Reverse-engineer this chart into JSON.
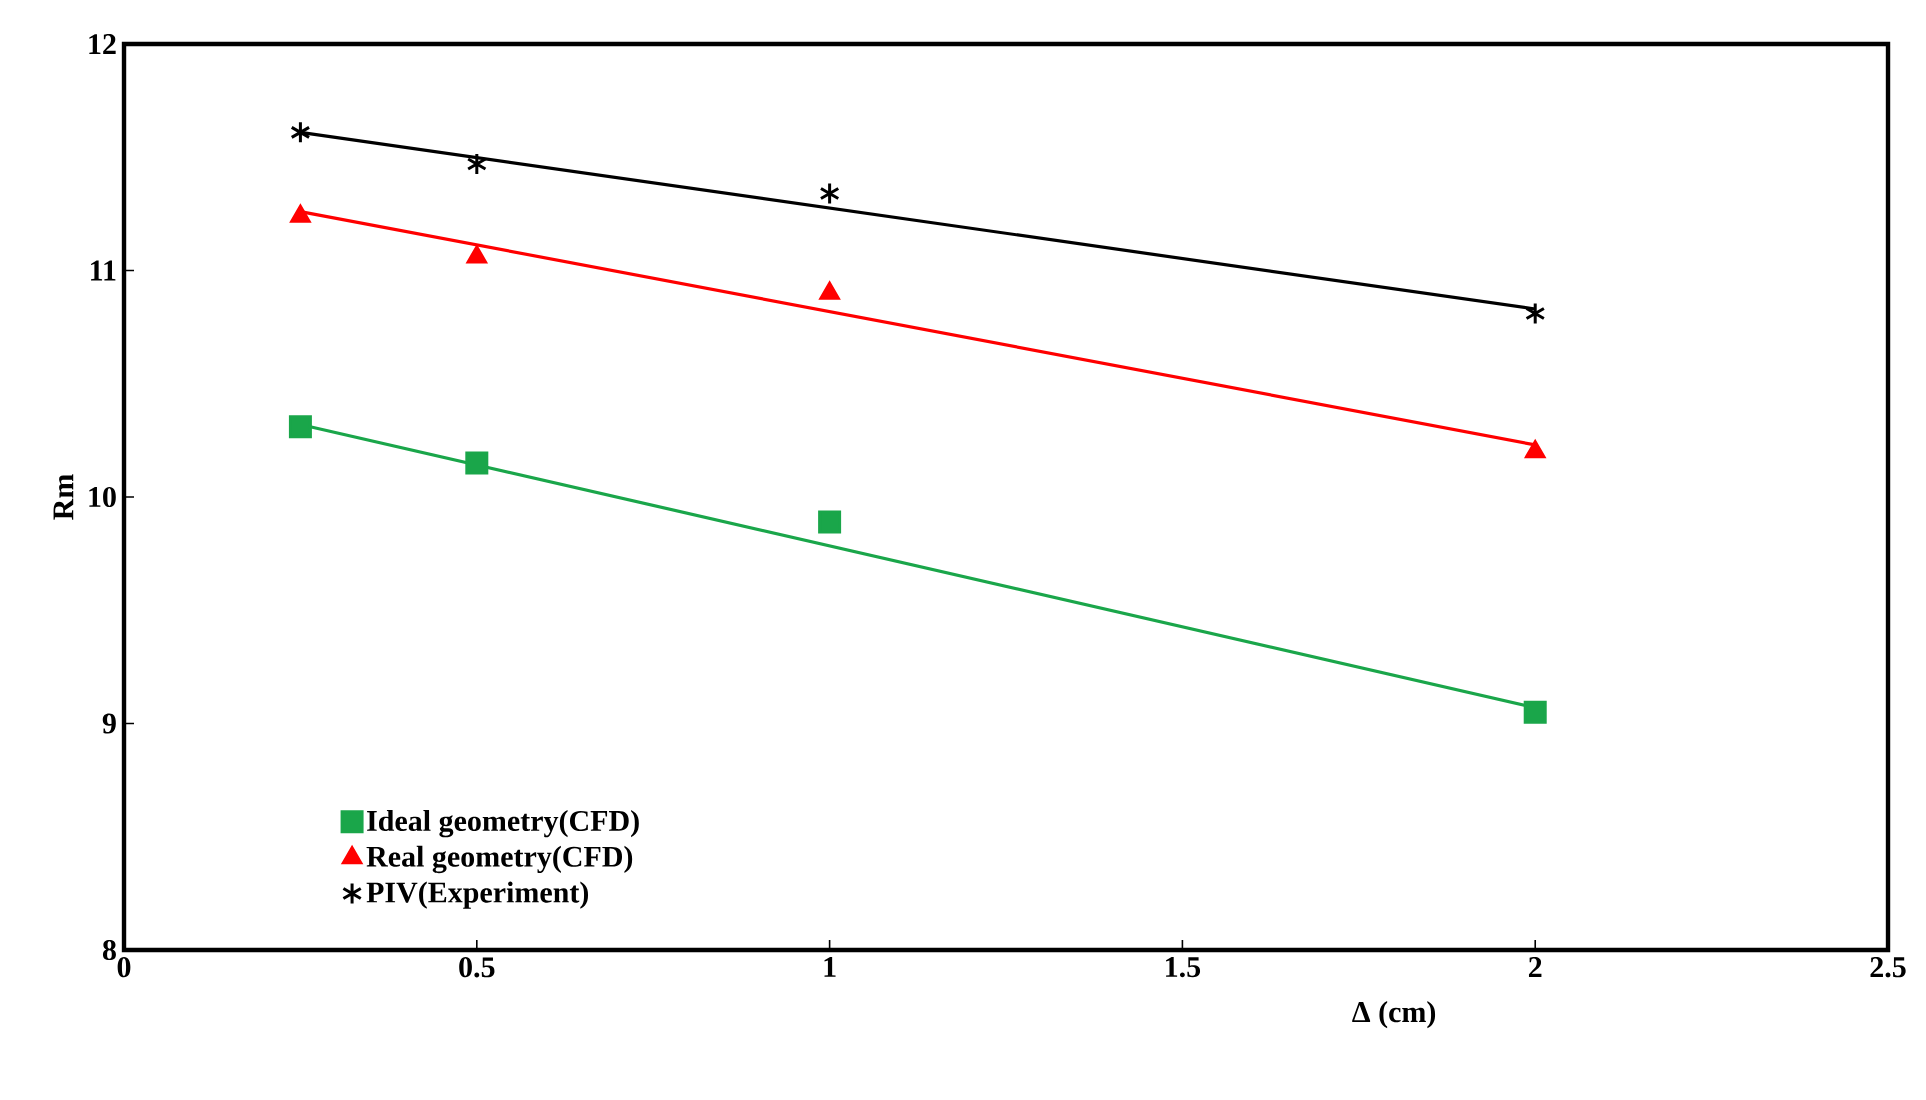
{
  "chart_data": {
    "type": "scatter",
    "xlabel": "Δ (cm)",
    "ylabel": "Rm",
    "xlim": [
      0,
      2.5
    ],
    "xticks": [
      0,
      0.5,
      1,
      1.5,
      2,
      2.5
    ],
    "ylim": [
      8,
      12
    ],
    "yticks": [
      8,
      9,
      10,
      11,
      12
    ],
    "legend": "bottom left",
    "series": [
      {
        "name": "Ideal geometry(CFD)",
        "color": "#1aa64a",
        "marker": "square",
        "x": [
          0.25,
          0.5,
          1,
          2
        ],
        "values": [
          10.31,
          10.15,
          9.89,
          9.05
        ]
      },
      {
        "name": "Real geometry(CFD)",
        "color": "#ff0000",
        "marker": "triangle",
        "x": [
          0.25,
          0.5,
          1,
          2
        ],
        "values": [
          11.24,
          11.06,
          10.9,
          10.2
        ]
      },
      {
        "name": "PIV(Experiment)",
        "color": "#000000",
        "marker": "cross",
        "x": [
          0.25,
          0.5,
          1,
          2
        ],
        "values": [
          11.61,
          11.47,
          11.34,
          10.81
        ]
      },
      {
        "type": "line",
        "color": "#1aa64a",
        "marker": "none",
        "x": [
          0.25,
          2
        ],
        "values": [
          10.32,
          9.07
        ]
      },
      {
        "type": "line",
        "color": "#ff0000",
        "marker": "none",
        "x": [
          0.25,
          2
        ],
        "values": [
          11.26,
          10.23
        ]
      },
      {
        "type": "line",
        "color": "#000000",
        "marker": "none",
        "x": [
          0.25,
          2
        ],
        "values": [
          11.61,
          10.83
        ]
      }
    ]
  }
}
